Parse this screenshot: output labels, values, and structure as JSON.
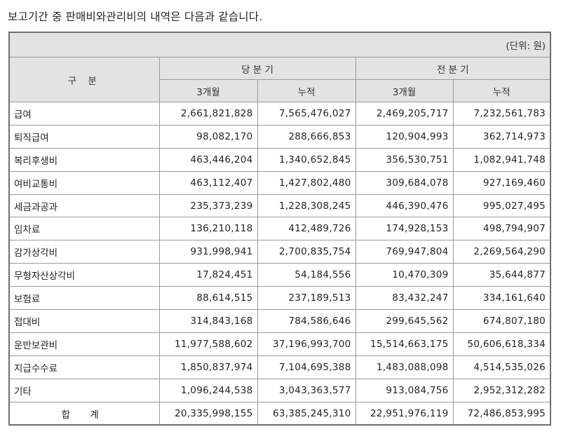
{
  "title": "보고기간 중 판매비와관리비의 내역은 다음과 같습니다.",
  "table": {
    "unit": "(단위: 원)",
    "header": {
      "category": "구 분",
      "current_period": "당 분 기",
      "prior_period": "전 분 기",
      "sub": [
        "3개월",
        "누적",
        "3개월",
        "누적"
      ]
    },
    "rows": [
      {
        "label": "급여",
        "values": [
          "2,661,821,828",
          "7,565,476,027",
          "2,469,205,717",
          "7,232,561,783"
        ]
      },
      {
        "label": "퇴직급여",
        "values": [
          "98,082,170",
          "288,666,853",
          "120,904,993",
          "362,714,973"
        ]
      },
      {
        "label": "복리후생비",
        "values": [
          "463,446,204",
          "1,340,652,845",
          "356,530,751",
          "1,082,941,748"
        ]
      },
      {
        "label": "여비교통비",
        "values": [
          "463,112,407",
          "1,427,802,480",
          "309,684,078",
          "927,169,460"
        ]
      },
      {
        "label": "세금과공과",
        "values": [
          "235,373,239",
          "1,228,308,245",
          "446,390,476",
          "995,027,495"
        ]
      },
      {
        "label": "임차료",
        "values": [
          "136,210,118",
          "412,489,726",
          "174,928,153",
          "498,794,907"
        ]
      },
      {
        "label": "감가상각비",
        "values": [
          "931,998,941",
          "2,700,835,754",
          "769,947,804",
          "2,269,564,290"
        ]
      },
      {
        "label": "무형자산상각비",
        "values": [
          "17,824,451",
          "54,184,556",
          "10,470,309",
          "35,644,877"
        ]
      },
      {
        "label": "보험료",
        "values": [
          "88,614,515",
          "237,189,513",
          "83,432,247",
          "334,161,640"
        ]
      },
      {
        "label": "접대비",
        "values": [
          "314,843,168",
          "784,586,646",
          "299,645,562",
          "674,807,180"
        ]
      },
      {
        "label": "운반보관비",
        "values": [
          "11,977,588,602",
          "37,196,993,700",
          "15,514,663,175",
          "50,606,618,334"
        ]
      },
      {
        "label": "지급수수료",
        "values": [
          "1,850,837,974",
          "7,104,695,388",
          "1,483,088,098",
          "4,514,535,026"
        ]
      },
      {
        "label": "기타",
        "values": [
          "1,096,244,538",
          "3,043,363,577",
          "913,084,756",
          "2,952,312,282"
        ]
      }
    ],
    "total": {
      "label": "합 계",
      "values": [
        "20,335,998,155",
        "63,385,245,310",
        "22,951,976,119",
        "72,486,853,995"
      ]
    }
  },
  "colors": {
    "header_bg": "#e3e3e3",
    "border": "#9a9a9a",
    "outer_border": "#6f6f6f",
    "text": "#222222"
  }
}
